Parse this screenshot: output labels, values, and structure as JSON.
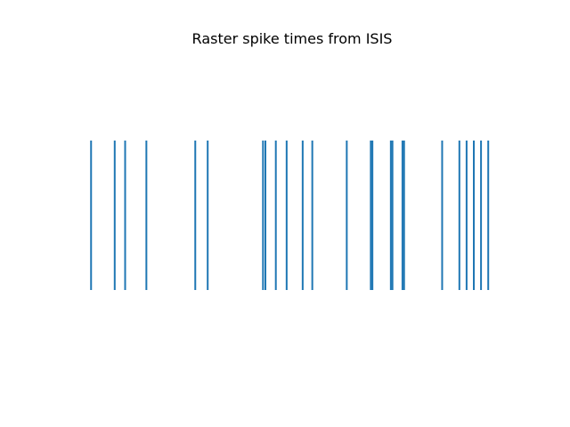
{
  "chart_data": {
    "type": "raster",
    "title": "Raster spike times from ISIS",
    "xlabel": "",
    "ylabel": "",
    "axes_visible": false,
    "grid": false,
    "legend": "none",
    "color": "#1f77b4",
    "xlim": [
      0,
      100
    ],
    "spike_times": [
      4.5,
      10.4,
      13.0,
      18.3,
      30.5,
      33.6,
      47.4,
      48.0,
      50.6,
      53.3,
      57.3,
      59.7,
      68.3,
      74.3,
      74.7,
      79.3,
      79.7,
      82.2,
      82.6,
      92.1,
      96.4,
      98.2,
      100.0,
      101.8,
      103.6
    ]
  }
}
